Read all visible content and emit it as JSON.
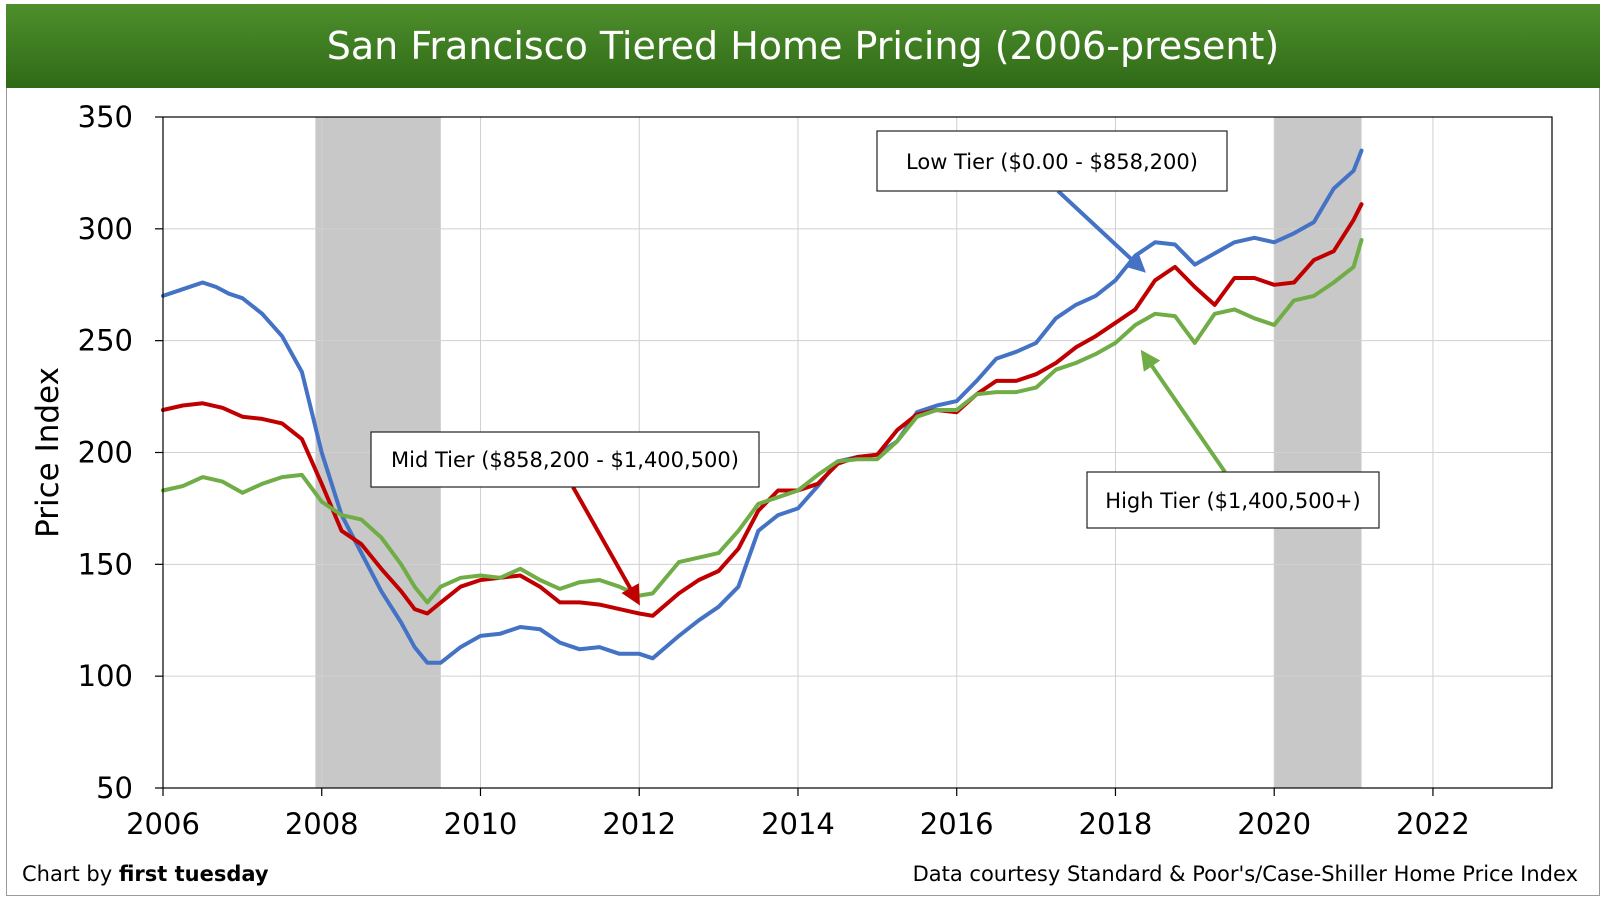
{
  "title": "San Francisco Tiered Home Pricing (2006-present)",
  "credit": {
    "prefix": "Chart by ",
    "brand": "first tuesday"
  },
  "source": "Data courtesy Standard & Poor's/Case-Shiller Home Price Index",
  "colors": {
    "title_bg": "#3a7a1f",
    "low": "#4472c4",
    "mid": "#c00000",
    "high": "#70ad47",
    "recession": "#c8c8c8"
  },
  "chart_data": {
    "type": "line",
    "title": "San Francisco Tiered Home Pricing (2006-present)",
    "xlabel": "",
    "ylabel": "Price Index",
    "xlim": [
      2006,
      2023.5
    ],
    "ylim": [
      50,
      350
    ],
    "x_ticks": [
      "2006",
      "2008",
      "2010",
      "2012",
      "2014",
      "2016",
      "2018",
      "2020",
      "2022"
    ],
    "y_ticks": [
      "50",
      "100",
      "150",
      "200",
      "250",
      "300",
      "350"
    ],
    "grid": true,
    "recession_bands": [
      [
        2007.92,
        2009.5
      ],
      [
        2020.0,
        2021.1
      ]
    ],
    "annotations": [
      {
        "text": "Low Tier ($0.00 - $858,200)",
        "series": "Low Tier"
      },
      {
        "text": "Mid Tier ($858,200 - $1,400,500)",
        "series": "Mid Tier"
      },
      {
        "text": "High Tier ($1,400,500+)",
        "series": "High Tier"
      }
    ],
    "series": [
      {
        "name": "Low Tier ($0.00 - $858,200)",
        "color": "#4472c4",
        "x": [
          2006.0,
          2006.25,
          2006.5,
          2006.67,
          2006.83,
          2007.0,
          2007.25,
          2007.5,
          2007.75,
          2008.0,
          2008.25,
          2008.5,
          2008.75,
          2009.0,
          2009.17,
          2009.33,
          2009.5,
          2009.75,
          2010.0,
          2010.25,
          2010.5,
          2010.75,
          2011.0,
          2011.25,
          2011.5,
          2011.75,
          2012.0,
          2012.17,
          2012.5,
          2012.75,
          2013.0,
          2013.25,
          2013.5,
          2013.75,
          2014.0,
          2014.25,
          2014.5,
          2014.75,
          2015.0,
          2015.25,
          2015.5,
          2015.75,
          2016.0,
          2016.25,
          2016.5,
          2016.75,
          2017.0,
          2017.25,
          2017.5,
          2017.75,
          2018.0,
          2018.25,
          2018.5,
          2018.75,
          2019.0,
          2019.25,
          2019.5,
          2019.75,
          2020.0,
          2020.25,
          2020.5,
          2020.75,
          2021.0,
          2021.1
        ],
        "y": [
          270,
          273,
          276,
          274,
          271,
          269,
          262,
          252,
          236,
          200,
          172,
          155,
          138,
          124,
          113,
          106,
          106,
          113,
          118,
          119,
          122,
          121,
          115,
          112,
          113,
          110,
          110,
          108,
          118,
          125,
          131,
          140,
          165,
          172,
          175,
          185,
          196,
          198,
          199,
          205,
          218,
          221,
          223,
          232,
          242,
          245,
          249,
          260,
          266,
          270,
          277,
          288,
          294,
          293,
          284,
          289,
          294,
          296,
          294,
          298,
          303,
          318,
          326,
          335
        ]
      },
      {
        "name": "Mid Tier ($858,200 - $1,400,500)",
        "color": "#c00000",
        "x": [
          2006.0,
          2006.25,
          2006.5,
          2006.75,
          2007.0,
          2007.25,
          2007.5,
          2007.75,
          2008.0,
          2008.25,
          2008.5,
          2008.75,
          2009.0,
          2009.17,
          2009.33,
          2009.5,
          2009.75,
          2010.0,
          2010.25,
          2010.5,
          2010.75,
          2011.0,
          2011.25,
          2011.5,
          2011.75,
          2012.0,
          2012.17,
          2012.5,
          2012.75,
          2013.0,
          2013.25,
          2013.5,
          2013.75,
          2014.0,
          2014.25,
          2014.5,
          2014.75,
          2015.0,
          2015.25,
          2015.5,
          2015.75,
          2016.0,
          2016.25,
          2016.5,
          2016.75,
          2017.0,
          2017.25,
          2017.5,
          2017.75,
          2018.0,
          2018.25,
          2018.5,
          2018.75,
          2019.0,
          2019.25,
          2019.5,
          2019.75,
          2020.0,
          2020.25,
          2020.5,
          2020.75,
          2021.0,
          2021.1
        ],
        "y": [
          219,
          221,
          222,
          220,
          216,
          215,
          213,
          206,
          186,
          165,
          159,
          148,
          138,
          130,
          128,
          133,
          140,
          143,
          144,
          145,
          140,
          133,
          133,
          132,
          130,
          128,
          127,
          137,
          143,
          147,
          157,
          174,
          183,
          183,
          186,
          195,
          198,
          199,
          210,
          217,
          219,
          218,
          226,
          232,
          232,
          235,
          240,
          247,
          252,
          258,
          264,
          277,
          283,
          274,
          266,
          278,
          278,
          275,
          276,
          286,
          290,
          304,
          311
        ]
      },
      {
        "name": "High Tier ($1,400,500+)",
        "color": "#70ad47",
        "x": [
          2006.0,
          2006.25,
          2006.5,
          2006.75,
          2007.0,
          2007.25,
          2007.5,
          2007.75,
          2008.0,
          2008.25,
          2008.5,
          2008.75,
          2009.0,
          2009.17,
          2009.33,
          2009.5,
          2009.75,
          2010.0,
          2010.25,
          2010.5,
          2010.75,
          2011.0,
          2011.25,
          2011.5,
          2011.75,
          2012.0,
          2012.17,
          2012.5,
          2012.75,
          2013.0,
          2013.25,
          2013.5,
          2013.75,
          2014.0,
          2014.25,
          2014.5,
          2014.75,
          2015.0,
          2015.25,
          2015.5,
          2015.75,
          2016.0,
          2016.25,
          2016.5,
          2016.75,
          2017.0,
          2017.25,
          2017.5,
          2017.75,
          2018.0,
          2018.25,
          2018.5,
          2018.75,
          2019.0,
          2019.25,
          2019.5,
          2019.75,
          2020.0,
          2020.25,
          2020.5,
          2020.75,
          2021.0,
          2021.1
        ],
        "y": [
          183,
          185,
          189,
          187,
          182,
          186,
          189,
          190,
          178,
          172,
          170,
          162,
          150,
          140,
          133,
          140,
          144,
          145,
          144,
          148,
          143,
          139,
          142,
          143,
          140,
          136,
          137,
          151,
          153,
          155,
          165,
          177,
          180,
          183,
          190,
          196,
          197,
          197,
          205,
          216,
          219,
          219,
          226,
          227,
          227,
          229,
          237,
          240,
          244,
          249,
          257,
          262,
          261,
          249,
          262,
          264,
          260,
          257,
          268,
          270,
          276,
          283,
          295
        ]
      }
    ]
  }
}
